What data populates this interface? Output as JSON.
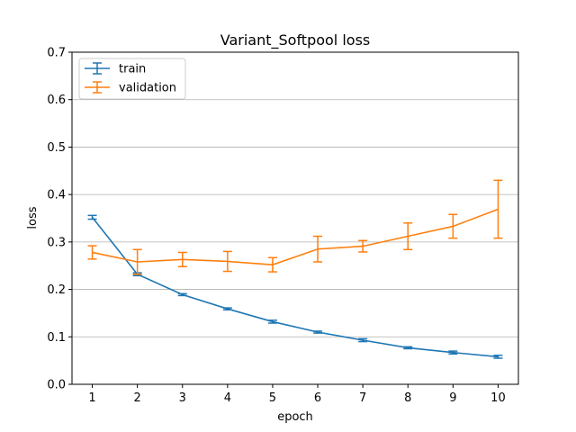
{
  "chart_data": {
    "type": "line",
    "title": "Variant_Softpool loss",
    "xlabel": "epoch",
    "ylabel": "loss",
    "x": [
      1,
      2,
      3,
      4,
      5,
      6,
      7,
      8,
      9,
      10
    ],
    "xticks": [
      "1",
      "2",
      "3",
      "4",
      "5",
      "6",
      "7",
      "8",
      "9",
      "10"
    ],
    "ylim": [
      0,
      0.7
    ],
    "yticks": [
      "0.0",
      "0.1",
      "0.2",
      "0.3",
      "0.4",
      "0.5",
      "0.6",
      "0.7"
    ],
    "grid": "horizontal",
    "legend_position": "top-left",
    "series": [
      {
        "name": "train",
        "color": "#1f77b4",
        "values": [
          0.352,
          0.232,
          0.189,
          0.159,
          0.132,
          0.11,
          0.093,
          0.077,
          0.067,
          0.058
        ],
        "errors": [
          0.004,
          0.003,
          0.002,
          0.002,
          0.003,
          0.002,
          0.003,
          0.002,
          0.003,
          0.003
        ]
      },
      {
        "name": "validation",
        "color": "#ff7f0e",
        "values": [
          0.278,
          0.258,
          0.263,
          0.259,
          0.252,
          0.285,
          0.291,
          0.312,
          0.333,
          0.369
        ],
        "errors": [
          0.014,
          0.026,
          0.015,
          0.021,
          0.015,
          0.027,
          0.012,
          0.028,
          0.025,
          0.061
        ]
      }
    ]
  }
}
